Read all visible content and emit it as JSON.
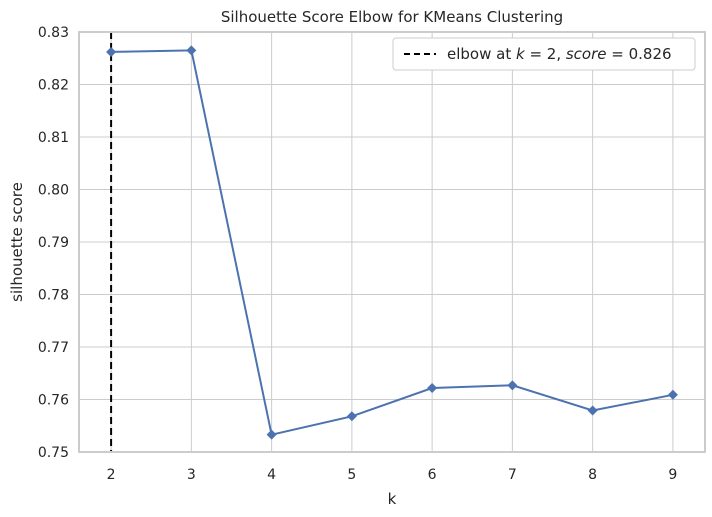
{
  "chart_data": {
    "type": "line",
    "title": "Silhouette Score Elbow for KMeans Clustering",
    "xlabel": "k",
    "ylabel": "silhouette score",
    "x": [
      2,
      3,
      4,
      5,
      6,
      7,
      8,
      9
    ],
    "series": [
      {
        "name": "",
        "values": [
          0.8262,
          0.8265,
          0.7533,
          0.7568,
          0.7622,
          0.7627,
          0.7579,
          0.7609
        ]
      }
    ],
    "xlim": [
      1.6,
      9.4
    ],
    "ylim": [
      0.75,
      0.83
    ],
    "xticks": [
      "2",
      "3",
      "4",
      "5",
      "6",
      "7",
      "8",
      "9"
    ],
    "yticks": [
      "0.75",
      "0.76",
      "0.77",
      "0.78",
      "0.79",
      "0.80",
      "0.81",
      "0.82",
      "0.83"
    ],
    "elbow": {
      "k": 2,
      "score": 0.826
    },
    "legend": {
      "prefix": "elbow at ",
      "k_symbol": "k",
      "eq_value": " = 2, ",
      "score_symbol": "score",
      "score_value": " = 0.826",
      "placement": "top-right"
    },
    "grid": true,
    "colors": {
      "line": "#4c72b0",
      "elbow": "#000000",
      "grid": "#cccccc",
      "frame": "#cccccc"
    }
  }
}
